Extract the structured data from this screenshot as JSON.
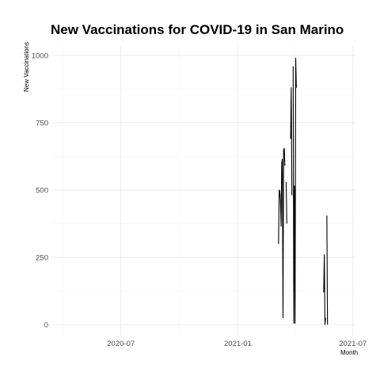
{
  "chart_data": {
    "type": "line",
    "title": "New Vaccinations for COVID-19 in San Marino",
    "xlabel": "Month",
    "ylabel": "New Vaccinations",
    "x_ticks": [
      "2020-07",
      "2021-01",
      "2021-07"
    ],
    "y_ticks": [
      0,
      250,
      500,
      750,
      1000
    ],
    "xlim": [
      "2020-03-15",
      "2021-07-05"
    ],
    "ylim": [
      0,
      1000
    ],
    "grid": true,
    "legend": "none",
    "series": [
      {
        "color": "#000000",
        "points": [
          [
            "2021-03-06",
            300
          ],
          [
            "2021-03-07",
            500
          ],
          [
            "2021-03-08",
            495
          ],
          [
            "2021-03-09",
            460
          ],
          [
            "2021-03-10",
            365
          ],
          [
            "2021-03-11",
            600
          ],
          [
            "2021-03-12",
            615
          ],
          [
            "2021-03-13",
            25
          ],
          [
            "2021-03-14",
            650
          ],
          [
            "2021-03-15",
            655
          ],
          [
            "2021-03-16",
            590
          ],
          [
            "2021-03-18",
            530
          ],
          [
            "2021-03-19",
            375
          ],
          [
            "2021-03-25",
            690
          ],
          [
            "2021-03-26",
            880
          ],
          [
            "2021-03-27",
            480
          ],
          [
            "2021-03-29",
            960
          ],
          [
            "2021-03-30",
            5
          ],
          [
            "2021-03-31",
            515
          ],
          [
            "2021-04-01",
            5
          ],
          [
            "2021-04-02",
            990
          ],
          [
            "2021-04-03",
            880
          ],
          [
            "2021-05-16",
            120
          ],
          [
            "2021-05-17",
            260
          ],
          [
            "2021-05-18",
            0
          ],
          [
            "2021-05-19",
            25
          ],
          [
            "2021-05-21",
            405
          ],
          [
            "2021-05-22",
            0
          ]
        ]
      }
    ]
  }
}
